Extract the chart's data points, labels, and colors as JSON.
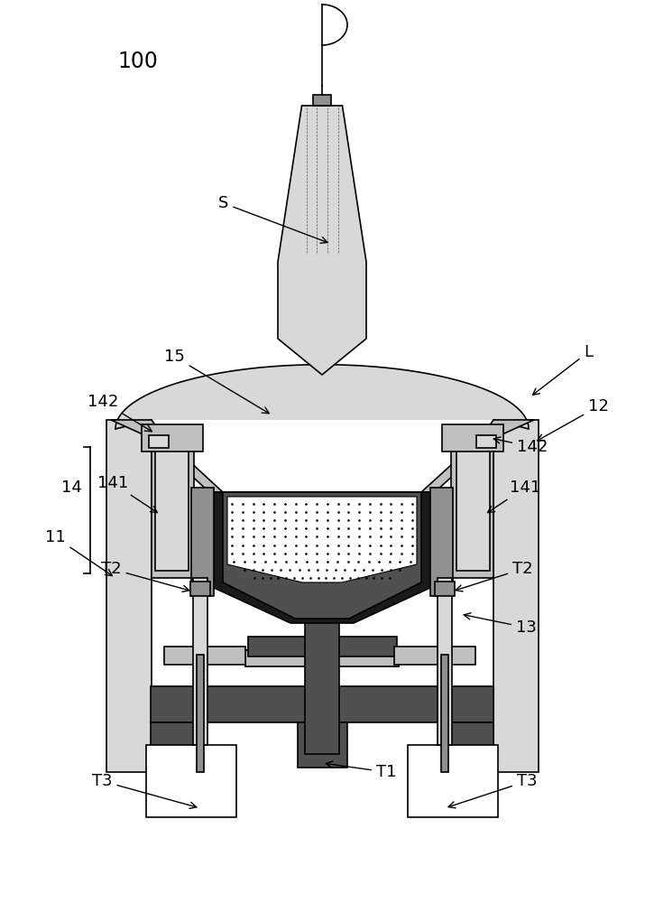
{
  "bg_color": "#ffffff",
  "line_color": "#000000",
  "light_gray": "#c0c0c0",
  "mid_gray": "#909090",
  "dark_gray": "#505050",
  "very_dark": "#1a1a1a",
  "lighter_gray": "#d8d8d8",
  "label_100": "100",
  "label_S": "S",
  "label_15": "15",
  "label_14": "14",
  "label_141": "141",
  "label_142": "142",
  "label_11": "11",
  "label_12": "12",
  "label_13": "13",
  "label_L": "L",
  "label_T1": "T1",
  "label_T2": "T2",
  "label_T3": "T3"
}
